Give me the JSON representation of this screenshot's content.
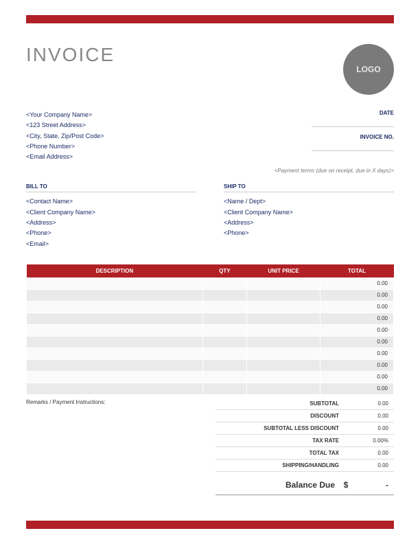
{
  "colors": {
    "accent": "#b02025",
    "text_navy": "#1a2a66",
    "title_grey": "#888888",
    "logo_bg": "#7a7a7a",
    "row_alt": "#eaeaea",
    "row_base": "#fafafa"
  },
  "title": "INVOICE",
  "logo_text": "LOGO",
  "company": {
    "name": "<Your Company Name>",
    "street": "<123 Street Address>",
    "city": "<City, State, Zip/Post Code>",
    "phone": "<Phone Number>",
    "email": "<Email Address>"
  },
  "meta": {
    "date_label": "DATE",
    "invoice_no_label": "INVOICE NO."
  },
  "payment_terms": "<Payment terms (due on receipt, due in X days)>",
  "bill_to": {
    "title": "BILL TO",
    "contact": "<Contact Name>",
    "company": "<Client Company Name>",
    "address": "<Address>",
    "phone": "<Phone>",
    "email": "<Email>"
  },
  "ship_to": {
    "title": "SHIP TO",
    "name": "<Name / Dept>",
    "company": "<Client Company Name>",
    "address": "<Address>",
    "phone": "<Phone>"
  },
  "table": {
    "headers": {
      "description": "DESCRIPTION",
      "qty": "QTY",
      "unit_price": "UNIT PRICE",
      "total": "TOTAL"
    },
    "rows": [
      {
        "description": "",
        "qty": "",
        "unit": "",
        "total": "0.00"
      },
      {
        "description": "",
        "qty": "",
        "unit": "",
        "total": "0.00"
      },
      {
        "description": "",
        "qty": "",
        "unit": "",
        "total": "0.00"
      },
      {
        "description": "",
        "qty": "",
        "unit": "",
        "total": "0.00"
      },
      {
        "description": "",
        "qty": "",
        "unit": "",
        "total": "0.00"
      },
      {
        "description": "",
        "qty": "",
        "unit": "",
        "total": "0.00"
      },
      {
        "description": "",
        "qty": "",
        "unit": "",
        "total": "0.00"
      },
      {
        "description": "",
        "qty": "",
        "unit": "",
        "total": "0.00"
      },
      {
        "description": "",
        "qty": "",
        "unit": "",
        "total": "0.00"
      },
      {
        "description": "",
        "qty": "",
        "unit": "",
        "total": "0.00"
      }
    ]
  },
  "remarks_label": "Remarks / Payment Instructions:",
  "summary": {
    "subtotal": {
      "label": "SUBTOTAL",
      "value": "0.00"
    },
    "discount": {
      "label": "DISCOUNT",
      "value": "0.00"
    },
    "subtotal_less": {
      "label": "SUBTOTAL LESS DISCOUNT",
      "value": "0.00"
    },
    "tax_rate": {
      "label": "TAX RATE",
      "value": "0.00%"
    },
    "total_tax": {
      "label": "TOTAL TAX",
      "value": "0.00"
    },
    "shipping": {
      "label": "SHIPPING/HANDLING",
      "value": "0.00"
    }
  },
  "balance": {
    "label": "Balance Due",
    "currency": "$",
    "value": "-"
  }
}
